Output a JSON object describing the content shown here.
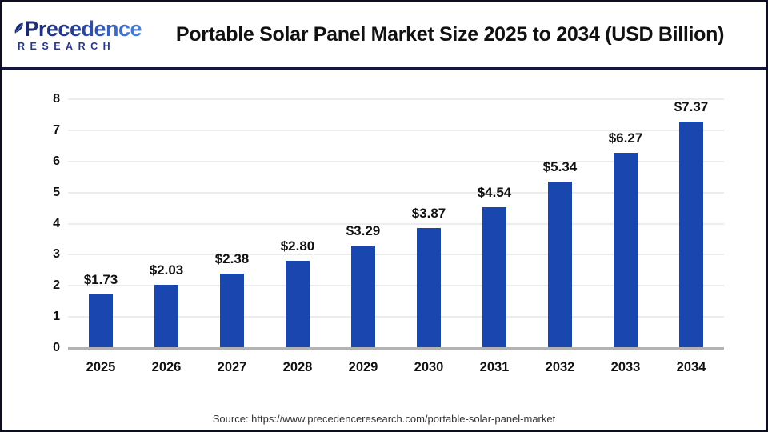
{
  "brand": {
    "name": "Precedence",
    "subtitle": "RESEARCH"
  },
  "source": "Source: https://www.precedenceresearch.com/portable-solar-panel-market",
  "chart_data": {
    "type": "bar",
    "title": "Portable Solar Panel Market Size 2025 to 2034 (USD Billion)",
    "categories": [
      "2025",
      "2026",
      "2027",
      "2028",
      "2029",
      "2030",
      "2031",
      "2032",
      "2033",
      "2034"
    ],
    "values": [
      1.73,
      2.03,
      2.38,
      2.8,
      3.29,
      3.87,
      4.54,
      5.34,
      6.27,
      7.37
    ],
    "value_labels": [
      "$1.73",
      "$2.03",
      "$2.38",
      "$2.80",
      "$3.29",
      "$3.87",
      "$4.54",
      "$5.34",
      "$6.27",
      "$7.37"
    ],
    "xlabel": "",
    "ylabel": "",
    "ylim": [
      0,
      8
    ],
    "yticks": [
      0,
      1,
      2,
      3,
      4,
      5,
      6,
      7,
      8
    ],
    "grid": true,
    "legend": null,
    "bar_color": "#1a46b0",
    "baseline_color": "#b3b3b3",
    "gridline_color": "#ececec"
  }
}
